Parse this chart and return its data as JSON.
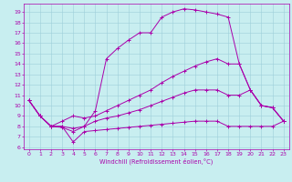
{
  "xlabel": "Windchill (Refroidissement éolien,°C)",
  "xlim": [
    -0.5,
    23.5
  ],
  "ylim": [
    5.8,
    19.8
  ],
  "xticks": [
    0,
    1,
    2,
    3,
    4,
    5,
    6,
    7,
    8,
    9,
    10,
    11,
    12,
    13,
    14,
    15,
    16,
    17,
    18,
    19,
    20,
    21,
    22,
    23
  ],
  "yticks": [
    6,
    7,
    8,
    9,
    10,
    11,
    12,
    13,
    14,
    15,
    16,
    17,
    18,
    19
  ],
  "bg_color": "#c8eef0",
  "grid_color": "#9ecfda",
  "line_color": "#aa00aa",
  "line1_x": [
    0,
    1,
    2,
    3,
    4,
    5,
    6,
    7,
    8,
    9,
    10,
    11,
    12,
    13,
    14,
    15,
    16,
    17,
    18,
    19,
    20,
    21,
    22,
    23
  ],
  "line1_y": [
    10.5,
    9.0,
    8.0,
    7.9,
    7.5,
    8.0,
    9.5,
    14.5,
    15.5,
    16.3,
    17.0,
    17.0,
    18.5,
    19.0,
    19.3,
    19.2,
    19.0,
    18.8,
    18.5,
    14.0,
    11.5,
    10.0,
    9.8,
    8.5
  ],
  "line2_x": [
    0,
    1,
    2,
    3,
    4,
    5,
    6,
    7,
    8,
    9,
    10,
    11,
    12,
    13,
    14,
    15,
    16,
    17,
    18,
    19,
    20,
    21,
    22,
    23
  ],
  "line2_y": [
    10.5,
    9.0,
    8.0,
    8.5,
    9.0,
    8.8,
    9.0,
    9.5,
    10.0,
    10.5,
    11.0,
    11.5,
    12.2,
    12.8,
    13.3,
    13.8,
    14.2,
    14.5,
    14.0,
    14.0,
    11.5,
    10.0,
    9.8,
    8.5
  ],
  "line3_x": [
    0,
    1,
    2,
    3,
    4,
    5,
    6,
    7,
    8,
    9,
    10,
    11,
    12,
    13,
    14,
    15,
    16,
    17,
    18,
    19,
    20,
    21,
    22,
    23
  ],
  "line3_y": [
    10.5,
    9.0,
    8.0,
    8.0,
    7.8,
    8.0,
    8.5,
    8.8,
    9.0,
    9.3,
    9.6,
    10.0,
    10.4,
    10.8,
    11.2,
    11.5,
    11.5,
    11.5,
    11.0,
    11.0,
    11.5,
    10.0,
    9.8,
    8.5
  ],
  "line4_x": [
    0,
    1,
    2,
    3,
    4,
    5,
    6,
    7,
    8,
    9,
    10,
    11,
    12,
    13,
    14,
    15,
    16,
    17,
    18,
    19,
    20,
    21,
    22,
    23
  ],
  "line4_y": [
    10.5,
    9.0,
    8.0,
    8.0,
    6.5,
    7.5,
    7.6,
    7.7,
    7.8,
    7.9,
    8.0,
    8.1,
    8.2,
    8.3,
    8.4,
    8.5,
    8.5,
    8.5,
    8.0,
    8.0,
    8.0,
    8.0,
    8.0,
    8.5
  ]
}
